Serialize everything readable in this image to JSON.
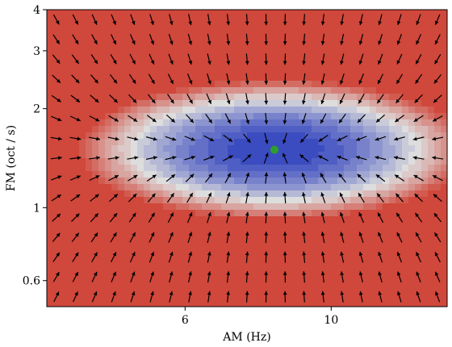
{
  "chart_data": {
    "type": "heatmap",
    "subtype": "contourf-with-quiver",
    "title": "",
    "xlabel": "AM (Hz)",
    "ylabel": "FM (oct / s)",
    "x_scale": "log",
    "y_scale": "log",
    "xlim": [
      3.7,
      15.0
    ],
    "ylim": [
      0.5,
      4.0
    ],
    "x_ticks": [
      {
        "value": 6,
        "label": "6"
      },
      {
        "value": 10,
        "label": "10"
      }
    ],
    "y_ticks": [
      {
        "value": 0.6,
        "label": "0.6"
      },
      {
        "value": 1,
        "label": "1"
      },
      {
        "value": 2,
        "label": "2"
      },
      {
        "value": 3,
        "label": "3"
      },
      {
        "value": 4,
        "label": "4"
      }
    ],
    "minimum_marker": {
      "x": 8.2,
      "y": 1.5,
      "color": "#2ca02c"
    },
    "colormap": "coolwarm",
    "low_color": "#3b4cc0",
    "high_color": "#d0473b",
    "arrow_grid": {
      "columns": 21,
      "rows": 15,
      "color": "#000000"
    },
    "grid": false,
    "legend": "none"
  }
}
